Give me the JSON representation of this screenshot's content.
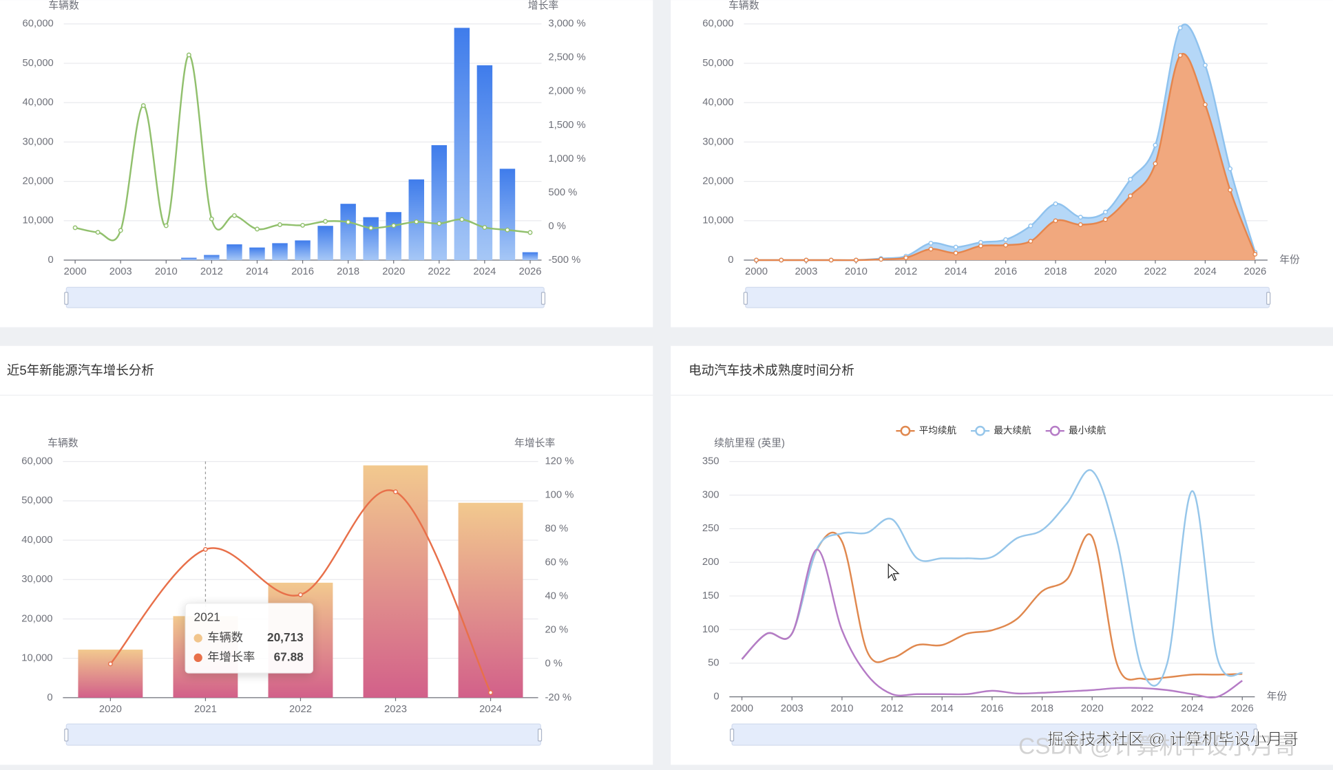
{
  "chart_data": [
    {
      "type": "bar",
      "y_axis_name": "车辆数",
      "y2_axis_name": "增长率",
      "categories": [
        "2000",
        null,
        "2003",
        null,
        "2010",
        null,
        "2012",
        null,
        "2014",
        null,
        "2016",
        null,
        "2018",
        null,
        "2020",
        null,
        "2022",
        null,
        "2024",
        null,
        "2026"
      ],
      "ylim": [
        0,
        60000
      ],
      "yticks": [
        0,
        {
          "value": 10000,
          "label": "10,000"
        },
        {
          "value": 20000,
          "label": "20,000"
        },
        {
          "value": 30000,
          "label": "30,000"
        },
        {
          "value": 40000,
          "label": "40,000"
        },
        {
          "value": 50000,
          "label": "50,000"
        },
        {
          "value": 60000,
          "label": "60,000"
        }
      ],
      "y2lim": [
        -500,
        3000
      ],
      "y2ticks": [
        {
          "value": -500,
          "label": "-500 %"
        },
        {
          "value": 0,
          "label": "0 %"
        },
        {
          "value": 500,
          "label": "500 %"
        },
        {
          "value": 1000,
          "label": "1,000 %"
        },
        {
          "value": 1500,
          "label": "1,500 %"
        },
        {
          "value": 2000,
          "label": "2,000 %"
        },
        {
          "value": 2500,
          "label": "2,500 %"
        },
        {
          "value": 3000,
          "label": "3,000 %"
        }
      ],
      "grid": true,
      "series": [
        {
          "type": "bar",
          "color": "#3f7ceb",
          "gradient": [
            "#3f7ceb",
            "#a6c7f6"
          ],
          "values": [
            0,
            0,
            0,
            0,
            0,
            600,
            1300,
            4000,
            3200,
            4300,
            5000,
            8700,
            14300,
            10900,
            12200,
            20500,
            29200,
            59000,
            49500,
            23200,
            2000
          ]
        },
        {
          "type": "line",
          "axis": "y2",
          "color": "#91c06d",
          "markers": true,
          "values": [
            -20,
            -88,
            -60,
            1790,
            10,
            2540,
            110,
            160,
            -40,
            25,
            16,
            74,
            64,
            -24,
            12,
            68,
            42,
            102,
            -16,
            -53,
            -91
          ]
        }
      ]
    },
    {
      "type": "area",
      "y_axis_name": "车辆数",
      "x_axis_name": "年份",
      "categories": [
        "2000",
        null,
        "2003",
        null,
        "2010",
        null,
        "2012",
        null,
        "2014",
        null,
        "2016",
        null,
        "2018",
        null,
        "2020",
        null,
        "2022",
        null,
        "2024",
        null,
        "2026"
      ],
      "ylim": [
        0,
        60000
      ],
      "yticks": [
        0,
        {
          "value": 10000,
          "label": "10,000"
        },
        {
          "value": 20000,
          "label": "20,000"
        },
        {
          "value": 30000,
          "label": "30,000"
        },
        {
          "value": 40000,
          "label": "40,000"
        },
        {
          "value": 50000,
          "label": "50,000"
        },
        {
          "value": 60000,
          "label": "60,000"
        }
      ],
      "grid": true,
      "series": [
        {
          "type": "area",
          "color": "#8fc2ee",
          "fill": "#b5d7f7",
          "markers": true,
          "values": [
            0,
            0,
            0,
            0,
            0,
            400,
            1000,
            4300,
            3300,
            4500,
            5200,
            8700,
            14300,
            10900,
            12200,
            20500,
            29200,
            59000,
            49500,
            23200,
            2000
          ]
        },
        {
          "type": "area",
          "color": "#e5864e",
          "fill": "#f1a87e",
          "markers": true,
          "values": [
            0,
            0,
            0,
            0,
            0,
            200,
            600,
            2800,
            1800,
            3600,
            3800,
            4800,
            10000,
            9000,
            10300,
            16300,
            24500,
            52000,
            39500,
            17800,
            1500
          ]
        }
      ]
    },
    {
      "type": "bar",
      "title": "近5年新能源汽车增长分析",
      "y_axis_name": "车辆数",
      "y2_axis_name": "年增长率",
      "categories": [
        "2020",
        "2021",
        "2022",
        "2023",
        "2024"
      ],
      "ylim": [
        0,
        60000
      ],
      "yticks": [
        0,
        {
          "value": 10000,
          "label": "10,000"
        },
        {
          "value": 20000,
          "label": "20,000"
        },
        {
          "value": 30000,
          "label": "30,000"
        },
        {
          "value": 40000,
          "label": "40,000"
        },
        {
          "value": 50000,
          "label": "50,000"
        },
        {
          "value": 60000,
          "label": "60,000"
        }
      ],
      "y2lim": [
        -20,
        120
      ],
      "y2ticks": [
        {
          "value": -20,
          "label": "-20 %"
        },
        {
          "value": 0,
          "label": "0 %"
        },
        {
          "value": 20,
          "label": "20 %"
        },
        {
          "value": 40,
          "label": "40 %"
        },
        {
          "value": 60,
          "label": "60 %"
        },
        {
          "value": 80,
          "label": "80 %"
        },
        {
          "value": 100,
          "label": "100 %"
        },
        {
          "value": 120,
          "label": "120 %"
        }
      ],
      "grid": true,
      "series": [
        {
          "type": "bar",
          "name": "车辆数",
          "color": "#f1c58c",
          "gradient": [
            "#f2c98e",
            "#d2608a"
          ],
          "values": [
            12200,
            20713,
            29200,
            59000,
            49500
          ]
        },
        {
          "type": "line",
          "name": "年增长率",
          "axis": "y2",
          "color": "#e8704a",
          "markers": true,
          "values": [
            0,
            67.88,
            41,
            102,
            -17
          ]
        }
      ],
      "tooltip": {
        "title": "2021",
        "rows": [
          {
            "name": "车辆数",
            "value": "20,713",
            "color": "#f1c58c"
          },
          {
            "name": "年增长率",
            "value": "67.88",
            "color": "#e8704a"
          }
        ]
      }
    },
    {
      "type": "line",
      "title": "电动汽车技术成熟度时间分析",
      "y_axis_name": "续航里程 (英里)",
      "x_axis_name": "年份",
      "categories": [
        "2000",
        null,
        "2003",
        null,
        "2010",
        null,
        "2012",
        null,
        "2014",
        null,
        "2016",
        null,
        "2018",
        null,
        "2020",
        null,
        "2022",
        null,
        "2024",
        null,
        "2026"
      ],
      "ylim": [
        0,
        350
      ],
      "yticks": [
        0,
        50,
        100,
        150,
        200,
        250,
        300,
        350
      ],
      "grid": true,
      "legend": "top",
      "series": [
        {
          "type": "line",
          "name": "平均续航",
          "color": "#e0884e",
          "values": [
            56,
            94,
            94,
            219,
            231,
            68,
            58,
            77,
            77,
            94,
            99,
            116,
            157,
            175,
            238,
            48,
            27,
            29,
            33,
            33,
            34
          ]
        },
        {
          "type": "line",
          "name": "最大续航",
          "color": "#96c6ea",
          "values": [
            56,
            94,
            94,
            220,
            243,
            244,
            264,
            206,
            206,
            206,
            208,
            236,
            248,
            288,
            336,
            231,
            39,
            50,
            306,
            58,
            35
          ]
        },
        {
          "type": "line",
          "name": "最小续航",
          "color": "#b57bc6",
          "values": [
            56,
            94,
            94,
            219,
            99,
            33,
            4,
            4,
            4,
            4,
            9,
            5,
            6,
            8,
            10,
            13,
            13,
            10,
            4,
            0,
            24
          ]
        }
      ]
    }
  ],
  "watermarks": [
    "掘金技术社区 @ 计算机毕设小月哥",
    "CSDN @计算机毕设小月哥"
  ]
}
